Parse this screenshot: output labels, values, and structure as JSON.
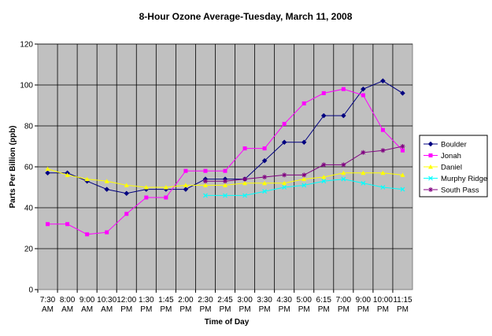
{
  "chart_data": {
    "type": "line",
    "title": "8-Hour Ozone Average-Tuesday, March 11, 2008",
    "xlabel": "Time of Day",
    "ylabel": "Parts Per Billion (ppb)",
    "ylim": [
      0,
      120
    ],
    "yticks": [
      0,
      20,
      40,
      60,
      80,
      100,
      120
    ],
    "grid": true,
    "legend_position": "right",
    "categories": [
      [
        "7:30",
        "AM"
      ],
      [
        "8:00",
        "AM"
      ],
      [
        "9:00",
        "AM"
      ],
      [
        "10:30",
        "AM"
      ],
      [
        "12:00",
        "PM"
      ],
      [
        "1:30",
        "PM"
      ],
      [
        "1:45",
        "PM"
      ],
      [
        "2:00",
        "PM"
      ],
      [
        "2:30",
        "PM"
      ],
      [
        "2:45",
        "PM"
      ],
      [
        "3:00",
        "PM"
      ],
      [
        "3:30",
        "PM"
      ],
      [
        "4:30",
        "PM"
      ],
      [
        "5:00",
        "PM"
      ],
      [
        "6:15",
        "PM"
      ],
      [
        "7:00",
        "PM"
      ],
      [
        "9:00",
        "PM"
      ],
      [
        "10:00",
        "PM"
      ],
      [
        "11:15",
        "PM"
      ]
    ],
    "series": [
      {
        "name": "Boulder",
        "color": "#000080",
        "marker": "diamond",
        "values": [
          57,
          57,
          53,
          49,
          47,
          49,
          49,
          49,
          54,
          54,
          54,
          63,
          72,
          72,
          85,
          85,
          98,
          102,
          96
        ]
      },
      {
        "name": "Jonah",
        "color": "#ff00ff",
        "marker": "square",
        "values": [
          32,
          32,
          27,
          28,
          37,
          45,
          45,
          58,
          58,
          58,
          69,
          69,
          81,
          91,
          96,
          98,
          95,
          78,
          68
        ]
      },
      {
        "name": "Daniel",
        "color": "#ffff00",
        "marker": "triangle",
        "values": [
          59,
          56,
          54,
          53,
          51,
          50,
          50,
          51,
          51,
          51,
          52,
          52,
          52,
          54,
          55,
          57,
          57,
          57,
          56
        ]
      },
      {
        "name": "Murphy Ridge",
        "color": "#00ffff",
        "marker": "x",
        "values": [
          null,
          null,
          null,
          null,
          null,
          null,
          null,
          null,
          46,
          46,
          46,
          48,
          50,
          51,
          53,
          54,
          52,
          50,
          49
        ]
      },
      {
        "name": "South Pass",
        "color": "#800080",
        "marker": "star",
        "values": [
          null,
          null,
          null,
          null,
          null,
          null,
          null,
          null,
          53,
          53,
          54,
          55,
          56,
          56,
          61,
          61,
          67,
          68,
          70
        ]
      }
    ]
  }
}
